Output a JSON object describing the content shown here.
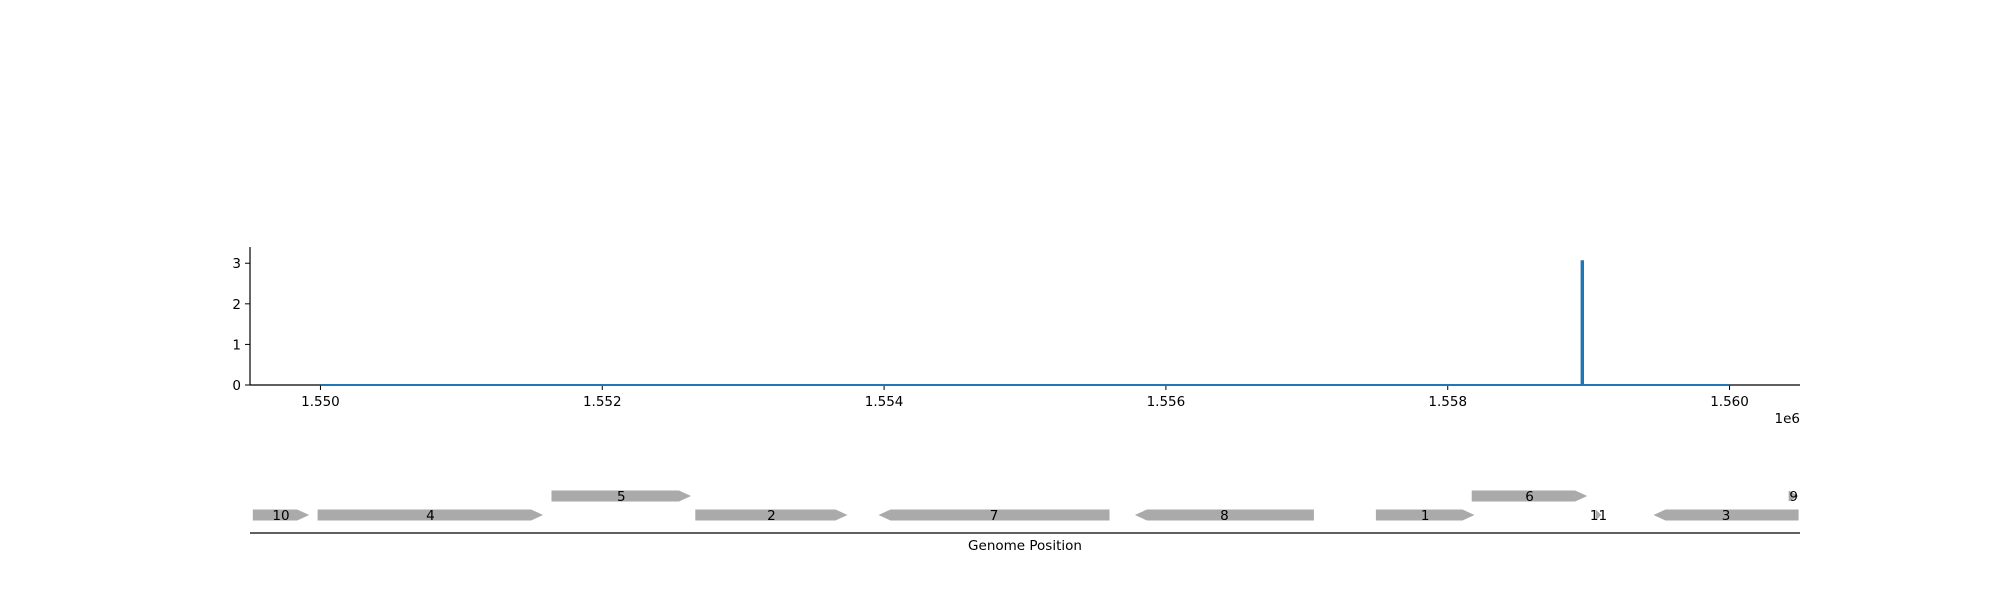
{
  "chart_data": [
    {
      "type": "line",
      "xlim": [
        1549500,
        1560500
      ],
      "ylim": [
        0,
        3.4
      ],
      "x_ticks": [
        1550000,
        1552000,
        1554000,
        1556000,
        1558000,
        1560000
      ],
      "x_tick_labels": [
        "1.550",
        "1.552",
        "1.554",
        "1.556",
        "1.558",
        "1.560"
      ],
      "x_offset_label": "1e6",
      "y_ticks": [
        0,
        1,
        2,
        3
      ],
      "y_tick_labels": [
        "0",
        "1",
        "2",
        "3"
      ],
      "color": "#1f77b4",
      "series": [
        {
          "x": [
            1550000,
            1558950,
            1558950,
            1558960,
            1558960,
            1560000
          ],
          "y": [
            0,
            0,
            3.05,
            3.05,
            0,
            0
          ]
        }
      ]
    },
    {
      "type": "gene_map",
      "xlabel": "Genome Position",
      "xlim": [
        1549500,
        1560500
      ],
      "color": "#aaaaaa",
      "genes": [
        {
          "label": "10",
          "start": 1549520,
          "end": 1549920,
          "strand": "+",
          "row": 0
        },
        {
          "label": "4",
          "start": 1549980,
          "end": 1551580,
          "strand": "+",
          "row": 0
        },
        {
          "label": "5",
          "start": 1551640,
          "end": 1552630,
          "strand": "+",
          "row": 1
        },
        {
          "label": "2",
          "start": 1552660,
          "end": 1553740,
          "strand": "+",
          "row": 0
        },
        {
          "label": "7",
          "start": 1553960,
          "end": 1555600,
          "strand": "-",
          "row": 0
        },
        {
          "label": "8",
          "start": 1555780,
          "end": 1557050,
          "strand": "-",
          "row": 0
        },
        {
          "label": "1",
          "start": 1557490,
          "end": 1558190,
          "strand": "+",
          "row": 0
        },
        {
          "label": "6",
          "start": 1558170,
          "end": 1558990,
          "strand": "+",
          "row": 1
        },
        {
          "label": "11",
          "start": 1559050,
          "end": 1559090,
          "strand": "+",
          "row": 0
        },
        {
          "label": "3",
          "start": 1559460,
          "end": 1560490,
          "strand": "-",
          "row": 0
        },
        {
          "label": "9",
          "start": 1560420,
          "end": 1560490,
          "strand": "+",
          "row": 1
        }
      ]
    }
  ]
}
